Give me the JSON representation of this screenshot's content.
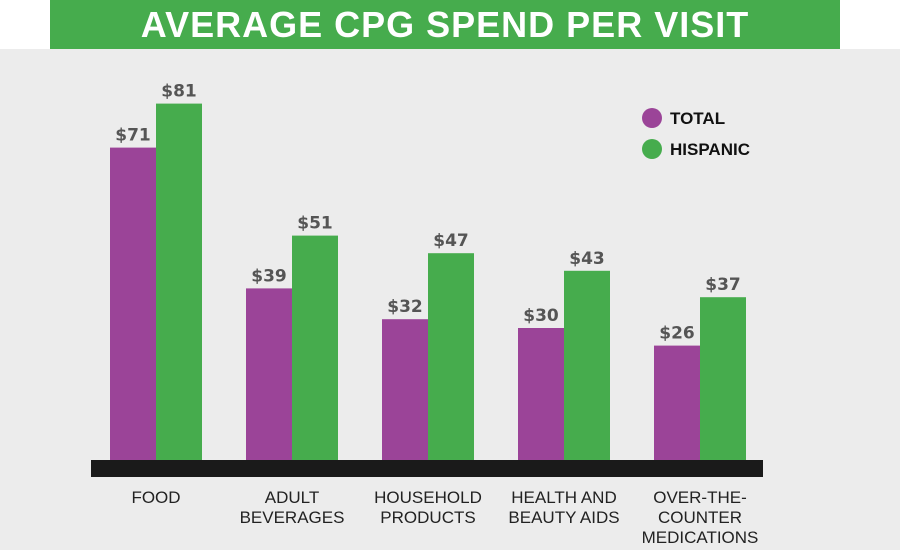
{
  "chart_data": {
    "type": "bar",
    "title": "AVERAGE CPG SPEND PER VISIT",
    "categories": [
      [
        "FOOD"
      ],
      [
        "ADULT",
        "BEVERAGES"
      ],
      [
        "HOUSEHOLD",
        "PRODUCTS"
      ],
      [
        "HEALTH AND",
        "BEAUTY AIDS"
      ],
      [
        "OVER-THE-",
        "COUNTER",
        "MEDICATIONS"
      ]
    ],
    "series": [
      {
        "name": "TOTAL",
        "color": "#9b4498",
        "values": [
          71,
          39,
          32,
          30,
          26
        ],
        "labels": [
          "$71",
          "$39",
          "$32",
          "$30",
          "$26"
        ]
      },
      {
        "name": "HISPANIC",
        "color": "#46ac4d",
        "values": [
          81,
          51,
          47,
          43,
          37
        ],
        "labels": [
          "$81",
          "$51",
          "$47",
          "$43",
          "$37"
        ]
      }
    ],
    "ylim": [
      0,
      90
    ],
    "legend_position": "top-right",
    "grid": false,
    "colors": {
      "title_bar": "#46ac4d",
      "baseline": "#1a1a1a",
      "background": "#ececec"
    }
  }
}
